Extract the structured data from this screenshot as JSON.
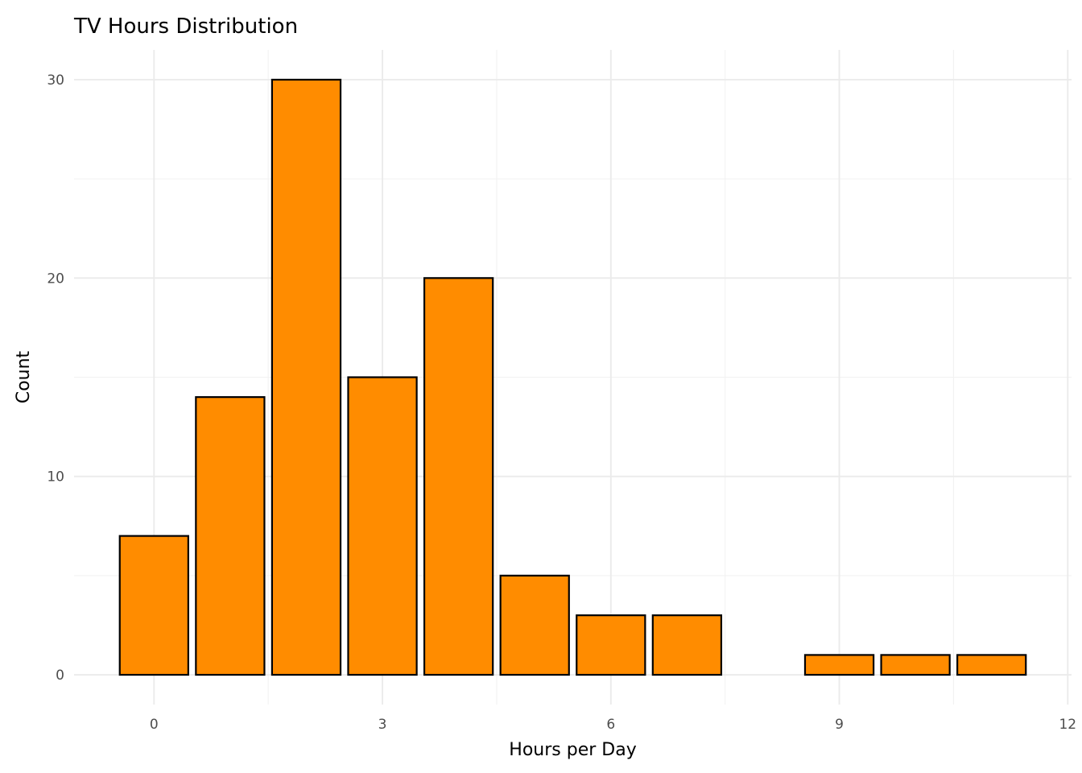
{
  "chart_data": {
    "type": "bar",
    "title": "TV Hours Distribution",
    "xlabel": "Hours per Day",
    "ylabel": "Count",
    "x": [
      0,
      1,
      2,
      3,
      4,
      5,
      6,
      7,
      9,
      10,
      11
    ],
    "values": [
      7,
      14,
      30,
      15,
      20,
      5,
      3,
      3,
      1,
      1,
      1
    ],
    "xlim": [
      -1.05,
      12.05
    ],
    "ylim": [
      -1.5,
      31.5
    ],
    "x_ticks": [
      0,
      3,
      6,
      9,
      12
    ],
    "y_ticks": [
      0,
      10,
      20,
      30
    ],
    "x_tick_labels": [
      "0",
      "3",
      "6",
      "9",
      "12"
    ],
    "y_tick_labels": [
      "0",
      "10",
      "20",
      "30"
    ],
    "bar_fill": "#FF8C00",
    "bar_outline": "#000000",
    "grid": true,
    "legend": "none"
  }
}
